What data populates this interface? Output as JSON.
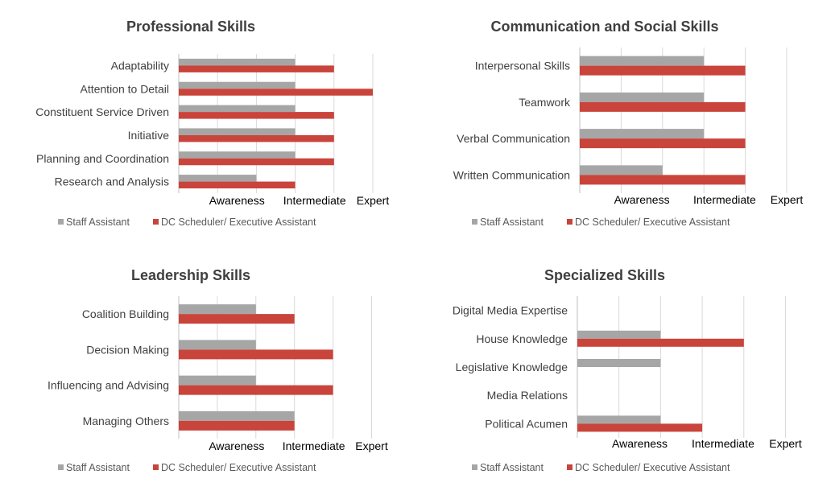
{
  "colors": {
    "staff": "#a6a6a6",
    "dc": "#c9443b",
    "grid": "#d9d9d9",
    "axis": "#bfbfbf"
  },
  "chart_data": [
    {
      "type": "bar",
      "orientation": "horizontal",
      "title": "Professional Skills",
      "categories": [
        "Adaptability",
        "Attention to Detail",
        "Constituent Service Driven",
        "Initiative",
        "Planning and Coordination",
        "Research and Analysis"
      ],
      "series": [
        {
          "name": "Staff Assistant",
          "values": [
            3,
            3,
            3,
            3,
            3,
            2
          ]
        },
        {
          "name": "DC Scheduler/ Executive Assistant",
          "values": [
            4,
            5,
            4,
            4,
            4,
            3
          ]
        }
      ],
      "xlim": [
        0,
        5
      ],
      "x_tick_labels": [
        "Awareness",
        "Intermediate",
        "Expert"
      ],
      "gridlines": true,
      "legend": "bottom"
    },
    {
      "type": "bar",
      "orientation": "horizontal",
      "title": "Communication and Social Skills",
      "categories": [
        "Interpersonal Skills",
        "Teamwork",
        "Verbal Communication",
        "Written Communication"
      ],
      "series": [
        {
          "name": "Staff Assistant",
          "values": [
            3,
            3,
            3,
            2
          ]
        },
        {
          "name": "DC Scheduler/ Executive Assistant",
          "values": [
            4,
            4,
            4,
            4
          ]
        }
      ],
      "xlim": [
        0,
        5
      ],
      "x_tick_labels": [
        "Awareness",
        "Intermediate",
        "Expert"
      ],
      "gridlines": true,
      "legend": "bottom"
    },
    {
      "type": "bar",
      "orientation": "horizontal",
      "title": "Leadership Skills",
      "categories": [
        "Coalition Building",
        "Decision Making",
        "Influencing and Advising",
        "Managing Others"
      ],
      "series": [
        {
          "name": "Staff Assistant",
          "values": [
            2,
            2,
            2,
            3
          ]
        },
        {
          "name": "DC Scheduler/ Executive Assistant",
          "values": [
            3,
            4,
            4,
            3
          ]
        }
      ],
      "xlim": [
        0,
        5
      ],
      "x_tick_labels": [
        "Awareness",
        "Intermediate",
        "Expert"
      ],
      "gridlines": true,
      "legend": "bottom"
    },
    {
      "type": "bar",
      "orientation": "horizontal",
      "title": "Specialized Skills",
      "categories": [
        "Digital Media Expertise",
        "House Knowledge",
        "Legislative Knowledge",
        "Media Relations",
        "Political Acumen"
      ],
      "series": [
        {
          "name": "Staff Assistant",
          "values": [
            0,
            2,
            2,
            0,
            2
          ]
        },
        {
          "name": "DC Scheduler/ Executive Assistant",
          "values": [
            0,
            4,
            0,
            0,
            3
          ]
        }
      ],
      "xlim": [
        0,
        5
      ],
      "x_tick_labels": [
        "Awareness",
        "Intermediate",
        "Expert"
      ],
      "gridlines": true,
      "legend": "bottom"
    }
  ]
}
